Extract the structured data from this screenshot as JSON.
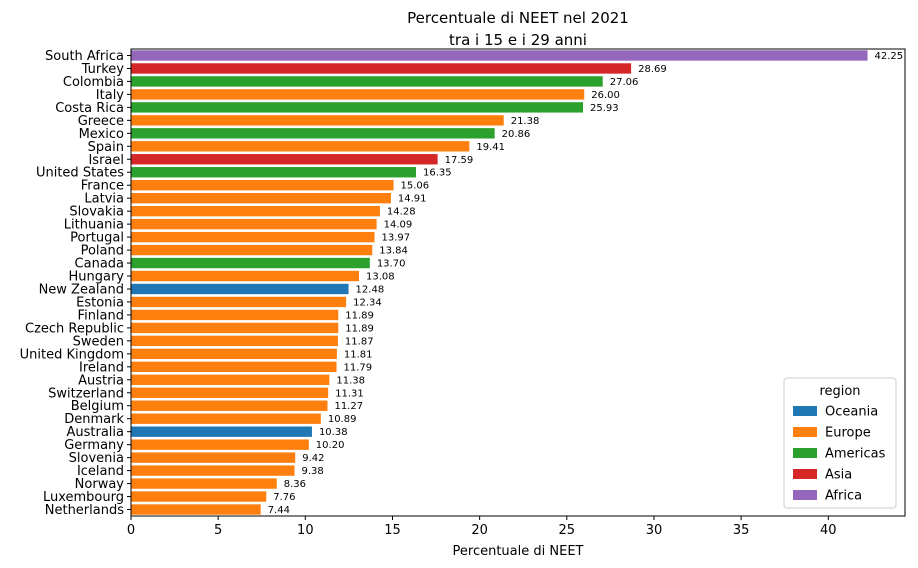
{
  "chart_data": {
    "type": "bar",
    "orientation": "horizontal",
    "title": "Percentuale di NEET nel 2021",
    "subtitle": "tra i 15 e i 29 anni",
    "xlabel": "Percentuale di NEET",
    "ylabel": "",
    "xlim": [
      0,
      44.4
    ],
    "xticks": [
      0,
      5,
      10,
      15,
      20,
      25,
      30,
      35,
      40
    ],
    "grid": false,
    "legend": {
      "title": "region",
      "placement": "bottom-right",
      "entries": [
        {
          "name": "Oceania",
          "color": "#1f77b4"
        },
        {
          "name": "Europe",
          "color": "#ff7f0e"
        },
        {
          "name": "Americas",
          "color": "#2ca02c"
        },
        {
          "name": "Asia",
          "color": "#d62728"
        },
        {
          "name": "Africa",
          "color": "#9467bd"
        }
      ]
    },
    "bars": [
      {
        "country": "South Africa",
        "value": 42.25,
        "label": "42.25",
        "region": "Africa"
      },
      {
        "country": "Turkey",
        "value": 28.69,
        "label": "28.69",
        "region": "Asia"
      },
      {
        "country": "Colombia",
        "value": 27.06,
        "label": "27.06",
        "region": "Americas"
      },
      {
        "country": "Italy",
        "value": 26.0,
        "label": "26.00",
        "region": "Europe"
      },
      {
        "country": "Costa Rica",
        "value": 25.93,
        "label": "25.93",
        "region": "Americas"
      },
      {
        "country": "Greece",
        "value": 21.38,
        "label": "21.38",
        "region": "Europe"
      },
      {
        "country": "Mexico",
        "value": 20.86,
        "label": "20.86",
        "region": "Americas"
      },
      {
        "country": "Spain",
        "value": 19.41,
        "label": "19.41",
        "region": "Europe"
      },
      {
        "country": "Israel",
        "value": 17.59,
        "label": "17.59",
        "region": "Asia"
      },
      {
        "country": "United States",
        "value": 16.35,
        "label": "16.35",
        "region": "Americas"
      },
      {
        "country": "France",
        "value": 15.06,
        "label": "15.06",
        "region": "Europe"
      },
      {
        "country": "Latvia",
        "value": 14.91,
        "label": "14.91",
        "region": "Europe"
      },
      {
        "country": "Slovakia",
        "value": 14.28,
        "label": "14.28",
        "region": "Europe"
      },
      {
        "country": "Lithuania",
        "value": 14.09,
        "label": "14.09",
        "region": "Europe"
      },
      {
        "country": "Portugal",
        "value": 13.97,
        "label": "13.97",
        "region": "Europe"
      },
      {
        "country": "Poland",
        "value": 13.84,
        "label": "13.84",
        "region": "Europe"
      },
      {
        "country": "Canada",
        "value": 13.7,
        "label": "13.70",
        "region": "Americas"
      },
      {
        "country": "Hungary",
        "value": 13.08,
        "label": "13.08",
        "region": "Europe"
      },
      {
        "country": "New Zealand",
        "value": 12.48,
        "label": "12.48",
        "region": "Oceania"
      },
      {
        "country": "Estonia",
        "value": 12.34,
        "label": "12.34",
        "region": "Europe"
      },
      {
        "country": "Finland",
        "value": 11.89,
        "label": "11.89",
        "region": "Europe"
      },
      {
        "country": "Czech Republic",
        "value": 11.89,
        "label": "11.89",
        "region": "Europe"
      },
      {
        "country": "Sweden",
        "value": 11.87,
        "label": "11.87",
        "region": "Europe"
      },
      {
        "country": "United Kingdom",
        "value": 11.81,
        "label": "11.81",
        "region": "Europe"
      },
      {
        "country": "Ireland",
        "value": 11.79,
        "label": "11.79",
        "region": "Europe"
      },
      {
        "country": "Austria",
        "value": 11.38,
        "label": "11.38",
        "region": "Europe"
      },
      {
        "country": "Switzerland",
        "value": 11.31,
        "label": "11.31",
        "region": "Europe"
      },
      {
        "country": "Belgium",
        "value": 11.27,
        "label": "11.27",
        "region": "Europe"
      },
      {
        "country": "Denmark",
        "value": 10.89,
        "label": "10.89",
        "region": "Europe"
      },
      {
        "country": "Australia",
        "value": 10.38,
        "label": "10.38",
        "region": "Oceania"
      },
      {
        "country": "Germany",
        "value": 10.2,
        "label": "10.20",
        "region": "Europe"
      },
      {
        "country": "Slovenia",
        "value": 9.42,
        "label": "9.42",
        "region": "Europe"
      },
      {
        "country": "Iceland",
        "value": 9.38,
        "label": "9.38",
        "region": "Europe"
      },
      {
        "country": "Norway",
        "value": 8.36,
        "label": "8.36",
        "region": "Europe"
      },
      {
        "country": "Luxembourg",
        "value": 7.76,
        "label": "7.76",
        "region": "Europe"
      },
      {
        "country": "Netherlands",
        "value": 7.44,
        "label": "7.44",
        "region": "Europe"
      }
    ]
  }
}
